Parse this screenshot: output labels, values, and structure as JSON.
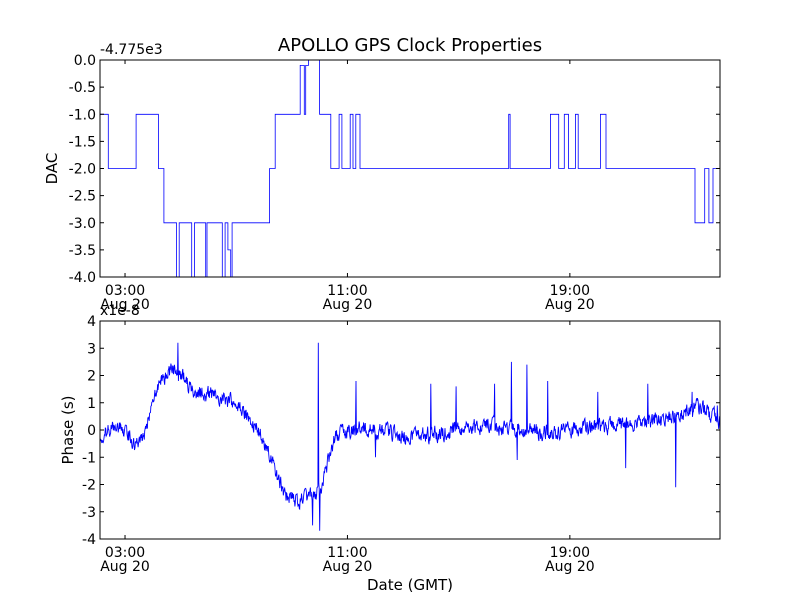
{
  "figure": {
    "title": "APOLLO GPS Clock Properties"
  },
  "chart_data": [
    {
      "type": "line",
      "title": "APOLLO GPS Clock Properties",
      "xlabel": "",
      "ylabel": "DAC",
      "offset_label": "-4.775e3",
      "x_unit": "hours since 00:00 GMT, Aug 20",
      "xlim": [
        2.1,
        24.4
      ],
      "ylim": [
        -4.0,
        0.0
      ],
      "x_ticks": [
        {
          "value": 3,
          "time": "03:00",
          "date": "Aug 20"
        },
        {
          "value": 11,
          "time": "11:00",
          "date": "Aug 20"
        },
        {
          "value": 19,
          "time": "19:00",
          "date": "Aug 20"
        }
      ],
      "y_ticks": [
        {
          "value": 0.0,
          "label": "0.0"
        },
        {
          "value": -0.5,
          "label": "-0.5"
        },
        {
          "value": -1.0,
          "label": "-1.0"
        },
        {
          "value": -1.5,
          "label": "-1.5"
        },
        {
          "value": -2.0,
          "label": "-2.0"
        },
        {
          "value": -2.5,
          "label": "-2.5"
        },
        {
          "value": -3.0,
          "label": "-3.0"
        },
        {
          "value": -3.5,
          "label": "-3.5"
        },
        {
          "value": -4.0,
          "label": "-4.0"
        }
      ],
      "grid": false,
      "series": [
        {
          "color": "#0000ff",
          "steps": [
            [
              2.1,
              -1.0
            ],
            [
              2.4,
              -2.0
            ],
            [
              3.4,
              -1.0
            ],
            [
              4.2,
              -2.0
            ],
            [
              4.4,
              -3.0
            ],
            [
              4.85,
              -4.0
            ],
            [
              4.95,
              -3.0
            ],
            [
              5.4,
              -4.0
            ],
            [
              5.5,
              -3.0
            ],
            [
              5.9,
              -4.0
            ],
            [
              5.95,
              -3.0
            ],
            [
              6.2,
              -3.0
            ],
            [
              6.5,
              -4.0
            ],
            [
              6.6,
              -3.0
            ],
            [
              6.7,
              -3.5
            ],
            [
              6.8,
              -4.0
            ],
            [
              6.85,
              -3.0
            ],
            [
              8.2,
              -2.0
            ],
            [
              8.4,
              -1.0
            ],
            [
              9.3,
              -0.1
            ],
            [
              9.45,
              -1.0
            ],
            [
              9.5,
              -0.1
            ],
            [
              9.6,
              0.0
            ],
            [
              10.0,
              -1.0
            ],
            [
              10.4,
              -2.0
            ],
            [
              10.7,
              -1.0
            ],
            [
              10.8,
              -2.0
            ],
            [
              11.1,
              -1.0
            ],
            [
              11.2,
              -2.0
            ],
            [
              11.3,
              -1.0
            ],
            [
              11.45,
              -2.0
            ],
            [
              16.8,
              -1.0
            ],
            [
              16.85,
              -2.0
            ],
            [
              18.3,
              -1.0
            ],
            [
              18.6,
              -2.0
            ],
            [
              18.8,
              -1.0
            ],
            [
              18.95,
              -2.0
            ],
            [
              19.2,
              -1.0
            ],
            [
              19.3,
              -2.0
            ],
            [
              20.1,
              -1.0
            ],
            [
              20.3,
              -2.0
            ],
            [
              21.2,
              -2.0
            ],
            [
              23.5,
              -3.0
            ],
            [
              23.85,
              -2.0
            ],
            [
              24.0,
              -3.0
            ],
            [
              24.15,
              -2.0
            ],
            [
              24.4,
              -2.0
            ]
          ]
        }
      ]
    },
    {
      "type": "line",
      "title": "",
      "xlabel": "Date (GMT)",
      "ylabel": "Phase (s)",
      "offset_label": "x1e-8",
      "x_unit": "hours since 00:00 GMT, Aug 20",
      "xlim": [
        2.1,
        24.4
      ],
      "ylim": [
        -4,
        4
      ],
      "x_ticks": [
        {
          "value": 3,
          "time": "03:00",
          "date": "Aug 20"
        },
        {
          "value": 11,
          "time": "11:00",
          "date": "Aug 20"
        },
        {
          "value": 19,
          "time": "19:00",
          "date": "Aug 20"
        }
      ],
      "y_ticks": [
        {
          "value": 4,
          "label": "4"
        },
        {
          "value": 3,
          "label": "3"
        },
        {
          "value": 2,
          "label": "2"
        },
        {
          "value": 1,
          "label": "1"
        },
        {
          "value": 0,
          "label": "0"
        },
        {
          "value": -1,
          "label": "-1"
        },
        {
          "value": -2,
          "label": "-2"
        },
        {
          "value": -3,
          "label": "-3"
        },
        {
          "value": -4,
          "label": "-4"
        }
      ],
      "grid": false,
      "series": [
        {
          "color": "#0000ff",
          "trend": [
            [
              2.1,
              -0.3
            ],
            [
              2.5,
              0.1
            ],
            [
              3.0,
              0.0
            ],
            [
              3.4,
              -0.6
            ],
            [
              3.7,
              -0.2
            ],
            [
              4.0,
              1.0
            ],
            [
              4.3,
              1.9
            ],
            [
              4.7,
              2.2
            ],
            [
              5.0,
              2.0
            ],
            [
              5.5,
              1.4
            ],
            [
              6.0,
              1.3
            ],
            [
              6.5,
              1.2
            ],
            [
              7.0,
              0.9
            ],
            [
              7.5,
              0.4
            ],
            [
              8.0,
              -0.4
            ],
            [
              8.4,
              -1.5
            ],
            [
              8.8,
              -2.4
            ],
            [
              9.2,
              -2.6
            ],
            [
              9.6,
              -2.5
            ],
            [
              10.0,
              -2.2
            ],
            [
              10.3,
              -1.2
            ],
            [
              10.6,
              -0.2
            ],
            [
              11.0,
              -0.1
            ],
            [
              11.5,
              0.1
            ],
            [
              12.0,
              0.0
            ],
            [
              13.0,
              -0.2
            ],
            [
              14.0,
              -0.2
            ],
            [
              15.0,
              0.0
            ],
            [
              16.0,
              0.2
            ],
            [
              17.0,
              0.0
            ],
            [
              18.0,
              -0.1
            ],
            [
              19.0,
              0.0
            ],
            [
              20.0,
              0.1
            ],
            [
              21.0,
              0.2
            ],
            [
              22.0,
              0.3
            ],
            [
              23.0,
              0.5
            ],
            [
              23.5,
              0.9
            ],
            [
              24.0,
              0.6
            ],
            [
              24.4,
              0.3
            ]
          ],
          "noise_amplitude": 0.45,
          "spikes": [
            [
              4.9,
              3.2
            ],
            [
              9.95,
              3.2
            ],
            [
              10.0,
              -3.7
            ],
            [
              9.75,
              -3.5
            ],
            [
              11.3,
              1.8
            ],
            [
              12.0,
              -1.0
            ],
            [
              14.0,
              1.7
            ],
            [
              14.9,
              1.6
            ],
            [
              16.3,
              1.7
            ],
            [
              16.9,
              2.5
            ],
            [
              17.1,
              -1.1
            ],
            [
              17.45,
              2.4
            ],
            [
              18.2,
              1.8
            ],
            [
              20.0,
              1.4
            ],
            [
              21.0,
              -1.4
            ],
            [
              21.8,
              1.7
            ],
            [
              22.8,
              -2.1
            ],
            [
              23.4,
              1.4
            ],
            [
              24.3,
              0.9
            ]
          ]
        }
      ]
    }
  ]
}
